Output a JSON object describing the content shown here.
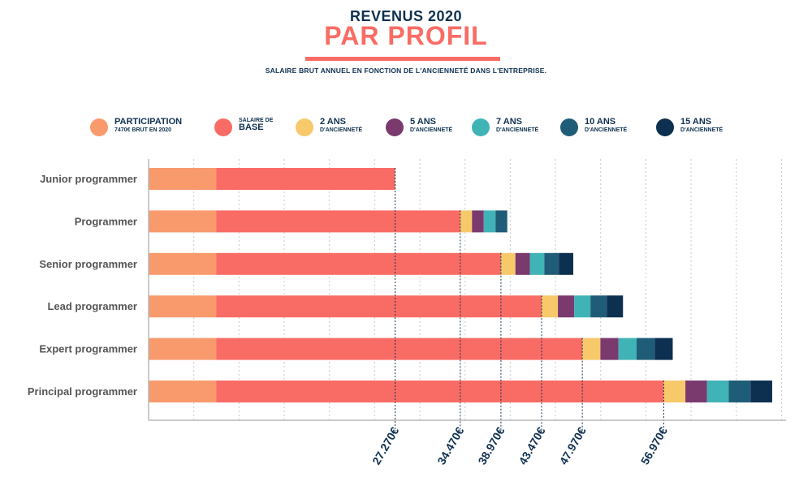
{
  "header": {
    "title_line1": "REVENUS 2020",
    "title_line2": "PAR PROFIL",
    "subtitle": "SALAIRE BRUT ANNUEL EN FONCTION DE L'ANCIENNETÉ DANS L'ENTREPRISE."
  },
  "colors": {
    "navy": "#0e3050",
    "accent": "#f96c65",
    "participation": "#f99a6d",
    "base": "#f96c65",
    "ans2": "#f7c96a",
    "ans5": "#7a3a6e",
    "ans7": "#3fb3b6",
    "ans10": "#1f5c78",
    "ans15": "#0e3050"
  },
  "legend": [
    {
      "line1": "PARTICIPATION",
      "line2": "7470€ BRUT EN 2020",
      "color": "#f99a6d",
      "big_first": true
    },
    {
      "line1": "SALAIRE DE",
      "line2": "BASE",
      "color": "#f96c65",
      "big_first": false
    },
    {
      "line1": "2 ANS",
      "line2": "D'ANCIENNETÉ",
      "color": "#f7c96a",
      "big_first": true
    },
    {
      "line1": "5 ANS",
      "line2": "D'ANCIENNETÉ",
      "color": "#7a3a6e",
      "big_first": true
    },
    {
      "line1": "7 ANS",
      "line2": "D'ANCIENNETÉ",
      "color": "#3fb3b6",
      "big_first": true
    },
    {
      "line1": "10 ANS",
      "line2": "D'ANCIENNETÉ",
      "color": "#1f5c78",
      "big_first": true
    },
    {
      "line1": "15 ANS",
      "line2": "D'ANCIENNETÉ",
      "color": "#0e3050",
      "big_first": true
    }
  ],
  "chart_data": {
    "type": "bar",
    "orientation": "horizontal",
    "stacked": true,
    "title": "PAR PROFIL",
    "categories": [
      "Junior programmer",
      "Programmer",
      "Senior programmer",
      "Lead programmer",
      "Expert programmer",
      "Principal programmer"
    ],
    "series": [
      {
        "name": "PARTICIPATION",
        "color": "#f99a6d",
        "values": [
          7470,
          7470,
          7470,
          7470,
          7470,
          7470
        ]
      },
      {
        "name": "SALAIRE DE BASE",
        "color": "#f96c65",
        "values": [
          19800,
          27000,
          31500,
          36000,
          40500,
          49500
        ]
      },
      {
        "name": "2 ANS",
        "color": "#f7c96a",
        "values": [
          0,
          1300,
          1600,
          1800,
          2000,
          2400
        ]
      },
      {
        "name": "5 ANS",
        "color": "#7a3a6e",
        "values": [
          0,
          1300,
          1600,
          1800,
          2000,
          2400
        ]
      },
      {
        "name": "7 ANS",
        "color": "#3fb3b6",
        "values": [
          0,
          1300,
          1600,
          1800,
          2000,
          2400
        ]
      },
      {
        "name": "10 ANS",
        "color": "#1f5c78",
        "values": [
          0,
          1300,
          1600,
          1800,
          2000,
          2400
        ]
      },
      {
        "name": "15 ANS",
        "color": "#0e3050",
        "values": [
          0,
          0,
          1600,
          1800,
          2000,
          2400
        ]
      }
    ],
    "reference_lines": [
      {
        "value": 27270,
        "label": "27.270€"
      },
      {
        "value": 34470,
        "label": "34.470€"
      },
      {
        "value": 38970,
        "label": "38.970€"
      },
      {
        "value": 43470,
        "label": "43.470€"
      },
      {
        "value": 47970,
        "label": "47.970€"
      },
      {
        "value": 56970,
        "label": "56.970€"
      }
    ],
    "xlim": [
      0,
      70500
    ],
    "grid": "vertical dotted"
  }
}
